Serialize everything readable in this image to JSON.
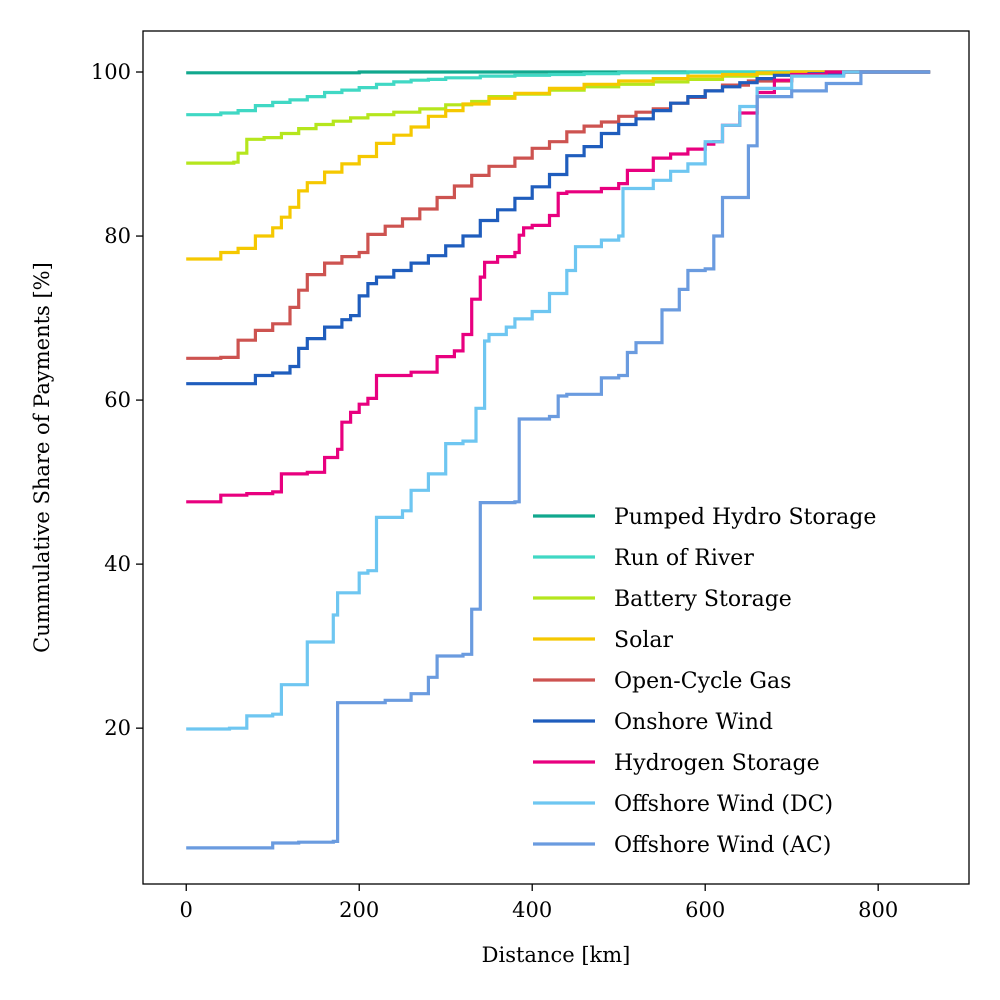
{
  "chart_data": {
    "type": "line",
    "xlabel": "Distance [km]",
    "ylabel": "Cummulative Share of Payments [%]",
    "xlim": [
      -50,
      905
    ],
    "ylim": [
      1,
      105
    ],
    "xticks": [
      "0",
      "200",
      "400",
      "600",
      "800"
    ],
    "yticks": [
      "20",
      "40",
      "60",
      "80",
      "100"
    ],
    "grid": false,
    "legend_position": "lower-right",
    "series": [
      {
        "name": "Pumped Hydro Storage",
        "color": "#11a88e",
        "x": [
          0,
          100,
          200,
          300,
          400,
          500,
          600,
          700,
          860
        ],
        "y": [
          99.9,
          99.9,
          100,
          100,
          100,
          100,
          100,
          100,
          100
        ]
      },
      {
        "name": "Run of River",
        "color": "#40d8c4",
        "x": [
          0,
          20,
          40,
          60,
          80,
          100,
          120,
          140,
          160,
          180,
          200,
          220,
          240,
          260,
          280,
          300,
          340,
          380,
          420,
          460,
          500,
          540,
          580,
          620,
          680,
          860
        ],
        "y": [
          94.8,
          94.8,
          95.0,
          95.3,
          95.9,
          96.3,
          96.6,
          97.0,
          97.5,
          97.8,
          98.1,
          98.5,
          98.8,
          99.0,
          99.1,
          99.3,
          99.5,
          99.6,
          99.7,
          99.8,
          99.9,
          99.9,
          100,
          100,
          100,
          100
        ]
      },
      {
        "name": "Battery Storage",
        "color": "#b5e61d",
        "x": [
          0,
          30,
          55,
          60,
          70,
          90,
          110,
          130,
          150,
          170,
          190,
          210,
          240,
          270,
          300,
          330,
          350,
          380,
          420,
          460,
          500,
          540,
          580,
          620,
          660,
          700,
          860
        ],
        "y": [
          88.9,
          88.9,
          89.0,
          90.1,
          91.8,
          92.0,
          92.5,
          93.1,
          93.6,
          94.0,
          94.4,
          94.8,
          95.1,
          95.5,
          96.0,
          96.4,
          97.0,
          97.3,
          97.8,
          98.2,
          98.5,
          98.8,
          99.1,
          99.5,
          99.8,
          100,
          100
        ]
      },
      {
        "name": "Solar",
        "color": "#f5c800",
        "x": [
          0,
          30,
          40,
          60,
          80,
          100,
          110,
          120,
          130,
          140,
          160,
          180,
          200,
          220,
          240,
          260,
          280,
          300,
          320,
          350,
          380,
          420,
          460,
          500,
          540,
          580,
          620,
          660,
          700,
          860
        ],
        "y": [
          77.2,
          77.2,
          78.0,
          78.5,
          80.0,
          81.0,
          82.3,
          83.5,
          85.5,
          86.5,
          87.8,
          88.8,
          89.7,
          91.3,
          92.3,
          93.3,
          94.6,
          95.3,
          96.1,
          96.8,
          97.4,
          98.0,
          98.5,
          98.9,
          99.2,
          99.5,
          99.7,
          99.9,
          100,
          100
        ]
      },
      {
        "name": "Open-Cycle Gas",
        "color": "#cd5350",
        "x": [
          0,
          40,
          60,
          80,
          100,
          120,
          130,
          140,
          160,
          180,
          200,
          210,
          230,
          250,
          270,
          290,
          310,
          330,
          350,
          380,
          400,
          420,
          440,
          460,
          480,
          500,
          520,
          540,
          560,
          580,
          600,
          620,
          650,
          700,
          760,
          860
        ],
        "y": [
          65.1,
          65.2,
          67.3,
          68.5,
          69.3,
          71.3,
          73.4,
          75.3,
          76.7,
          77.5,
          78.0,
          80.2,
          81.2,
          82.1,
          83.3,
          84.7,
          86.1,
          87.4,
          88.5,
          89.5,
          90.7,
          91.5,
          92.7,
          93.4,
          93.9,
          94.6,
          95.1,
          95.5,
          96.2,
          96.9,
          97.7,
          98.4,
          98.9,
          99.6,
          100,
          100
        ]
      },
      {
        "name": "Onshore Wind",
        "color": "#1f5dbd",
        "x": [
          0,
          50,
          80,
          100,
          120,
          130,
          140,
          160,
          180,
          190,
          200,
          210,
          220,
          240,
          260,
          280,
          300,
          320,
          340,
          360,
          380,
          400,
          420,
          440,
          460,
          480,
          500,
          520,
          540,
          560,
          580,
          600,
          620,
          640,
          660,
          680,
          720,
          760,
          860
        ],
        "y": [
          62.0,
          62.0,
          63.0,
          63.3,
          64.1,
          66.3,
          67.5,
          68.9,
          69.8,
          70.3,
          72.7,
          74.2,
          75.0,
          75.8,
          76.7,
          77.6,
          78.8,
          80.0,
          81.9,
          83.2,
          84.6,
          86.0,
          87.5,
          89.8,
          90.9,
          92.5,
          93.6,
          94.3,
          95.3,
          96.2,
          97.0,
          97.7,
          98.2,
          98.7,
          99.2,
          99.6,
          99.8,
          100,
          100
        ]
      },
      {
        "name": "Hydrogen Storage",
        "color": "#e8007f",
        "x": [
          0,
          30,
          40,
          70,
          100,
          110,
          140,
          160,
          175,
          180,
          190,
          200,
          210,
          220,
          260,
          290,
          310,
          320,
          330,
          340,
          345,
          360,
          380,
          385,
          390,
          400,
          420,
          430,
          440,
          480,
          500,
          510,
          540,
          560,
          580,
          600,
          610,
          620,
          640,
          660,
          680,
          700,
          740,
          860
        ],
        "y": [
          47.6,
          47.6,
          48.4,
          48.6,
          48.8,
          51.0,
          51.2,
          53.0,
          54.0,
          57.3,
          58.5,
          59.5,
          60.2,
          63.0,
          63.4,
          65.3,
          66.0,
          68.0,
          72.3,
          75.0,
          76.8,
          77.5,
          78.0,
          80.1,
          81.0,
          81.3,
          82.5,
          85.2,
          85.4,
          85.8,
          86.4,
          88.0,
          89.5,
          90.0,
          90.6,
          91.2,
          91.5,
          93.5,
          95.0,
          97.5,
          99.0,
          99.7,
          100,
          100
        ]
      },
      {
        "name": "Offshore Wind (DC)",
        "color": "#6ec6f1",
        "x": [
          0,
          50,
          70,
          100,
          110,
          140,
          170,
          175,
          200,
          210,
          220,
          250,
          260,
          280,
          300,
          320,
          335,
          345,
          350,
          370,
          380,
          400,
          420,
          440,
          450,
          480,
          500,
          505,
          540,
          560,
          580,
          600,
          620,
          640,
          660,
          700,
          760,
          860
        ],
        "y": [
          19.9,
          20.0,
          21.5,
          21.7,
          25.3,
          30.5,
          33.8,
          36.5,
          38.9,
          39.2,
          45.7,
          46.5,
          49.0,
          51.0,
          54.7,
          55.0,
          59.0,
          67.2,
          68.0,
          68.9,
          69.9,
          70.8,
          73.0,
          75.8,
          78.7,
          79.5,
          80.0,
          85.8,
          86.8,
          87.9,
          88.8,
          91.5,
          93.5,
          95.8,
          98.0,
          99.5,
          100,
          100
        ]
      },
      {
        "name": "Offshore Wind (AC)",
        "color": "#6a9bdf",
        "x": [
          0,
          100,
          130,
          170,
          175,
          230,
          260,
          280,
          290,
          320,
          330,
          340,
          380,
          385,
          420,
          430,
          440,
          480,
          500,
          510,
          520,
          550,
          570,
          580,
          600,
          610,
          620,
          650,
          660,
          700,
          740,
          780,
          860
        ],
        "y": [
          5.4,
          6.0,
          6.1,
          6.2,
          23.1,
          23.4,
          24.2,
          26.2,
          28.8,
          29.0,
          34.5,
          47.5,
          47.6,
          57.7,
          58.0,
          60.5,
          60.7,
          62.7,
          63.0,
          65.8,
          67.0,
          71.0,
          73.5,
          75.8,
          76.0,
          80.0,
          84.7,
          91.0,
          97.0,
          97.7,
          98.6,
          100,
          100
        ]
      }
    ]
  }
}
